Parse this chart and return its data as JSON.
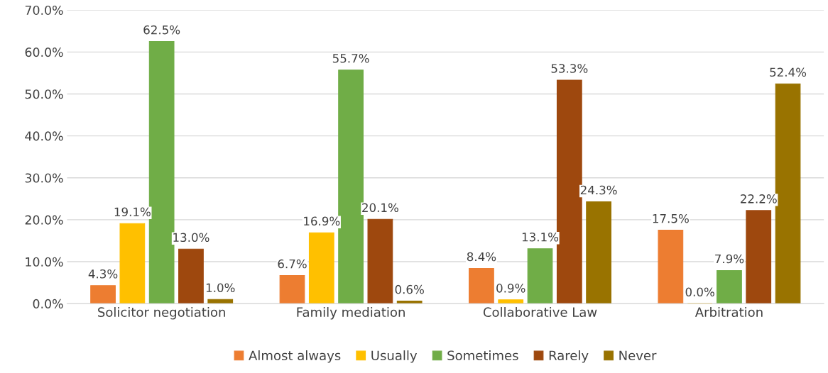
{
  "chart_data": {
    "type": "bar",
    "categories": [
      "Solicitor negotiation",
      "Family mediation",
      "Collaborative Law",
      "Arbitration"
    ],
    "series": [
      {
        "name": "Almost always",
        "color": "#ed7d31",
        "values": [
          4.3,
          6.7,
          8.4,
          17.5
        ],
        "value_labels": [
          "4.3%",
          "6.7%",
          "8.4%",
          "17.5%"
        ]
      },
      {
        "name": "Usually",
        "color": "#ffc000",
        "values": [
          19.1,
          16.9,
          0.9,
          0.0
        ],
        "value_labels": [
          "19.1%",
          "16.9%",
          "0.9%",
          "0.0%"
        ]
      },
      {
        "name": "Sometimes",
        "color": "#70ad47",
        "values": [
          62.5,
          55.7,
          13.1,
          7.9
        ],
        "value_labels": [
          "62.5%",
          "55.7%",
          "13.1%",
          "7.9%"
        ]
      },
      {
        "name": "Rarely",
        "color": "#9e480e",
        "values": [
          13.0,
          20.1,
          53.3,
          22.2
        ],
        "value_labels": [
          "13.0%",
          "20.1%",
          "53.3%",
          "22.2%"
        ]
      },
      {
        "name": "Never",
        "color": "#997300",
        "values": [
          1.0,
          0.6,
          24.3,
          52.4
        ],
        "value_labels": [
          "1.0%",
          "0.6%",
          "24.3%",
          "52.4%"
        ]
      }
    ],
    "ylim": [
      0,
      70
    ],
    "yticks": [
      {
        "value": 0,
        "label": "0.0%"
      },
      {
        "value": 10,
        "label": "10.0%"
      },
      {
        "value": 20,
        "label": "20.0%"
      },
      {
        "value": 30,
        "label": "30.0%"
      },
      {
        "value": 40,
        "label": "40.0%"
      },
      {
        "value": 50,
        "label": "50.0%"
      },
      {
        "value": 60,
        "label": "60.0%"
      },
      {
        "value": 70,
        "label": "70.0%"
      }
    ],
    "grid": "y",
    "legend": "bottom"
  }
}
